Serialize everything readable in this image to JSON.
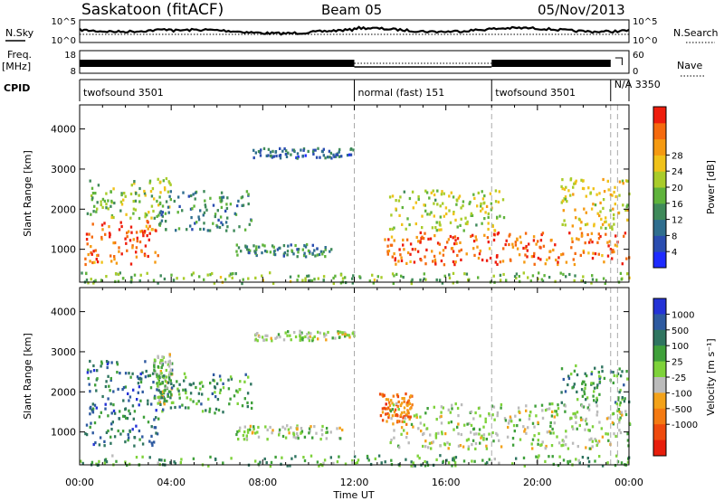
{
  "header": {
    "radar": "Saskatoon (fitACF)",
    "beam": "Beam 05",
    "date": "05/Nov/2013"
  },
  "status_panels": {
    "nsky_label": "N.Sky",
    "freq_label_1": "Freq.",
    "freq_label_2": "[MHz]",
    "cpid_label": "CPID",
    "nsearch_label": "N.Search",
    "nave_label": "Nave",
    "left_ticks_top": [
      "10^5",
      "10^0"
    ],
    "left_ticks_freq": [
      "18",
      "8"
    ],
    "right_ticks_top": [
      "10^5",
      "10^0"
    ],
    "right_ticks_freq": [
      "60",
      "0"
    ],
    "cpid_segments": [
      {
        "label": "twofsound 3501",
        "start_hour": 0,
        "end_hour": 12
      },
      {
        "label": "normal (fast) 151",
        "start_hour": 12,
        "end_hour": 18
      },
      {
        "label": "twofsound 3501",
        "start_hour": 18,
        "end_hour": 23.2
      },
      {
        "label": "N/A 3350",
        "start_hour": 23.2,
        "end_hour": 24
      }
    ]
  },
  "chart_data": [
    {
      "type": "heatmap",
      "name": "power",
      "ylabel": "Slant Range [km]",
      "xlabel": "",
      "xlim": [
        0,
        24
      ],
      "ylim": [
        180,
        4600
      ],
      "yticks": [
        "1000",
        "2000",
        "3000",
        "4000"
      ],
      "colorbar": {
        "label": "Power [dB]",
        "ticks": [
          "4",
          "8",
          "12",
          "16",
          "20",
          "24",
          "28"
        ],
        "colors": [
          "#1e2bff",
          "#2a4db0",
          "#2f6e8e",
          "#3f8a5a",
          "#5fb33c",
          "#a9cc2a",
          "#f0c21a",
          "#f59a12",
          "#f56a0e",
          "#ee1d0d"
        ]
      },
      "features": [
        {
          "id": "evening-band",
          "x0": 0.2,
          "x1": 3.4,
          "y0": 650,
          "y1": 1750,
          "c": 0.88
        },
        {
          "id": "upper-drift",
          "x0": 0.3,
          "x1": 4.0,
          "y0": 1800,
          "y1": 2800,
          "c": 0.5
        },
        {
          "id": "mid-clusters",
          "x0": 3.3,
          "x1": 7.5,
          "y0": 1500,
          "y1": 2500,
          "c": 0.3
        },
        {
          "id": "night-band",
          "x0": 6.8,
          "x1": 11.0,
          "y0": 850,
          "y1": 1150,
          "c": 0.3
        },
        {
          "id": "pre-noon-top",
          "x0": 7.5,
          "x1": 12.0,
          "y0": 3300,
          "y1": 3550,
          "c": 0.2
        },
        {
          "id": "morning-band",
          "x0": 13.2,
          "x1": 24.0,
          "y0": 650,
          "y1": 1450,
          "c": 0.88
        },
        {
          "id": "morning-upper",
          "x0": 13.5,
          "x1": 18.5,
          "y0": 1500,
          "y1": 2500,
          "c": 0.55
        },
        {
          "id": "dawn-cloud",
          "x0": 21.0,
          "x1": 24.0,
          "y0": 1500,
          "y1": 2800,
          "c": 0.65
        },
        {
          "id": "near-range",
          "x0": 0.0,
          "x1": 24.0,
          "y0": 180,
          "y1": 450,
          "c": 0.45
        }
      ]
    },
    {
      "type": "heatmap",
      "name": "velocity",
      "ylabel": "Slant Range [km]",
      "xlabel": "Time UT",
      "xlim": [
        0,
        24
      ],
      "ylim": [
        180,
        4600
      ],
      "yticks": [
        "1000",
        "2000",
        "3000",
        "4000"
      ],
      "xticks": [
        "00:00",
        "04:00",
        "08:00",
        "12:00",
        "16:00",
        "20:00",
        "00:00"
      ],
      "colorbar": {
        "label": "Velocity [m s⁻¹]",
        "ticks": [
          "1000",
          "500",
          "100",
          "25",
          "-25",
          "-100",
          "-500",
          "-1000"
        ],
        "colors": [
          "#2433d6",
          "#2e5aa0",
          "#2f7560",
          "#3fa03a",
          "#7ed23a",
          "#bbbbbb",
          "#f3a21a",
          "#f47a12",
          "#ef4a0d",
          "#e81e0c"
        ]
      },
      "features": [
        {
          "id": "evening-band",
          "x0": 0.2,
          "x1": 3.4,
          "y0": 650,
          "y1": 1750,
          "c": 0.2
        },
        {
          "id": "upper-drift",
          "x0": 0.3,
          "x1": 4.0,
          "y0": 1800,
          "y1": 2800,
          "c": 0.2
        },
        {
          "id": "gray-arc",
          "x0": 3.2,
          "x1": 4.0,
          "y0": 1700,
          "y1": 3000,
          "c": 0.5
        },
        {
          "id": "mid-clusters",
          "x0": 3.3,
          "x1": 7.5,
          "y0": 1500,
          "y1": 2500,
          "c": 0.3
        },
        {
          "id": "night-band",
          "x0": 6.8,
          "x1": 11.5,
          "y0": 850,
          "y1": 1200,
          "c": 0.5
        },
        {
          "id": "pre-noon-top",
          "x0": 7.5,
          "x1": 12.0,
          "y0": 3300,
          "y1": 3550,
          "c": 0.5
        },
        {
          "id": "noon-orange",
          "x0": 13.0,
          "x1": 14.5,
          "y0": 1200,
          "y1": 2000,
          "c": 0.78
        },
        {
          "id": "morning-band",
          "x0": 13.5,
          "x1": 24.0,
          "y0": 600,
          "y1": 1750,
          "c": 0.5
        },
        {
          "id": "dawn-cloud",
          "x0": 21.0,
          "x1": 24.0,
          "y0": 1700,
          "y1": 2700,
          "c": 0.3
        },
        {
          "id": "near-range",
          "x0": 0.0,
          "x1": 24.0,
          "y0": 180,
          "y1": 450,
          "c": 0.35
        }
      ]
    }
  ]
}
